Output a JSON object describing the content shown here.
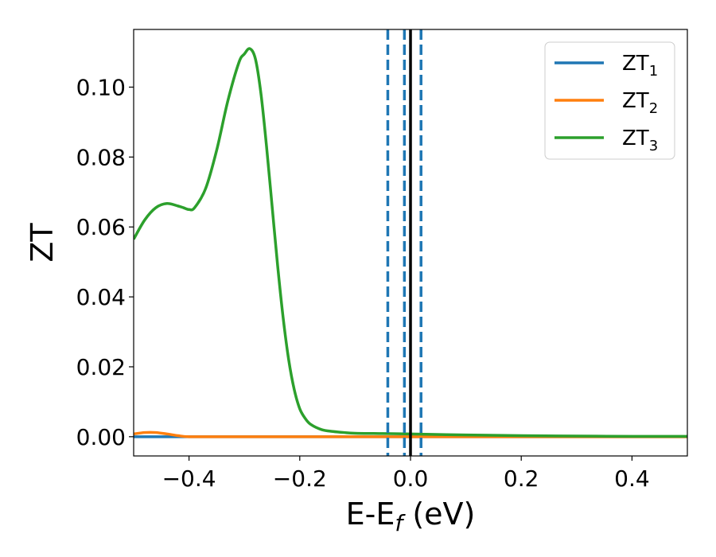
{
  "chart_data": {
    "type": "line",
    "title": "",
    "xlabel": "E-E",
    "xlabel_sub": "f",
    "xlabel_unit": " (eV)",
    "ylabel": "ZT",
    "xlim": [
      -0.5,
      0.5
    ],
    "ylim": [
      -0.0055,
      0.1165
    ],
    "xticks": [
      -0.4,
      -0.2,
      0.0,
      0.2,
      0.4
    ],
    "xtick_labels": [
      "−0.4",
      "−0.2",
      "0.0",
      "0.2",
      "0.4"
    ],
    "yticks": [
      0.0,
      0.02,
      0.04,
      0.06,
      0.08,
      0.1
    ],
    "ytick_labels": [
      "0.00",
      "0.02",
      "0.04",
      "0.06",
      "0.08",
      "0.10"
    ],
    "grid": false,
    "legend_position": "top-right",
    "series": [
      {
        "name": "ZT",
        "name_sub": "1",
        "color": "#1f77b4",
        "x": [
          -0.5,
          0.5
        ],
        "y": [
          0.0,
          0.0
        ]
      },
      {
        "name": "ZT",
        "name_sub": "2",
        "color": "#ff7f0e",
        "x": [
          -0.5,
          -0.48,
          -0.46,
          -0.44,
          -0.42,
          -0.4,
          -0.35,
          -0.3,
          -0.2,
          0.0,
          0.2,
          0.4,
          0.5
        ],
        "y": [
          0.0008,
          0.0012,
          0.0012,
          0.0008,
          0.0003,
          0.0,
          0.0,
          0.0,
          0.0,
          0.0,
          0.0,
          0.0,
          0.0
        ]
      },
      {
        "name": "ZT",
        "name_sub": "3",
        "color": "#2ca02c",
        "x": [
          -0.5,
          -0.48,
          -0.46,
          -0.44,
          -0.42,
          -0.41,
          -0.4,
          -0.39,
          -0.37,
          -0.35,
          -0.33,
          -0.31,
          -0.3,
          -0.29,
          -0.28,
          -0.27,
          -0.26,
          -0.25,
          -0.24,
          -0.23,
          -0.22,
          -0.21,
          -0.2,
          -0.19,
          -0.18,
          -0.16,
          -0.14,
          -0.12,
          -0.1,
          -0.05,
          0.0,
          0.1,
          0.2,
          0.3,
          0.4,
          0.5
        ],
        "y": [
          0.0565,
          0.062,
          0.0655,
          0.0667,
          0.066,
          0.0655,
          0.065,
          0.0655,
          0.071,
          0.082,
          0.096,
          0.107,
          0.1095,
          0.111,
          0.108,
          0.098,
          0.083,
          0.066,
          0.049,
          0.034,
          0.022,
          0.0135,
          0.008,
          0.0052,
          0.0035,
          0.002,
          0.0015,
          0.0012,
          0.001,
          0.0009,
          0.0008,
          0.0005,
          0.0003,
          0.0002,
          0.0001,
          0.0001
        ]
      }
    ],
    "vlines": [
      {
        "x": -0.041,
        "style": "dashed",
        "color": "#1f77b4"
      },
      {
        "x": -0.011,
        "style": "dashed",
        "color": "#1f77b4"
      },
      {
        "x": 0.0,
        "style": "solid",
        "color": "#000000"
      },
      {
        "x": 0.019,
        "style": "dashed",
        "color": "#1f77b4"
      }
    ]
  }
}
